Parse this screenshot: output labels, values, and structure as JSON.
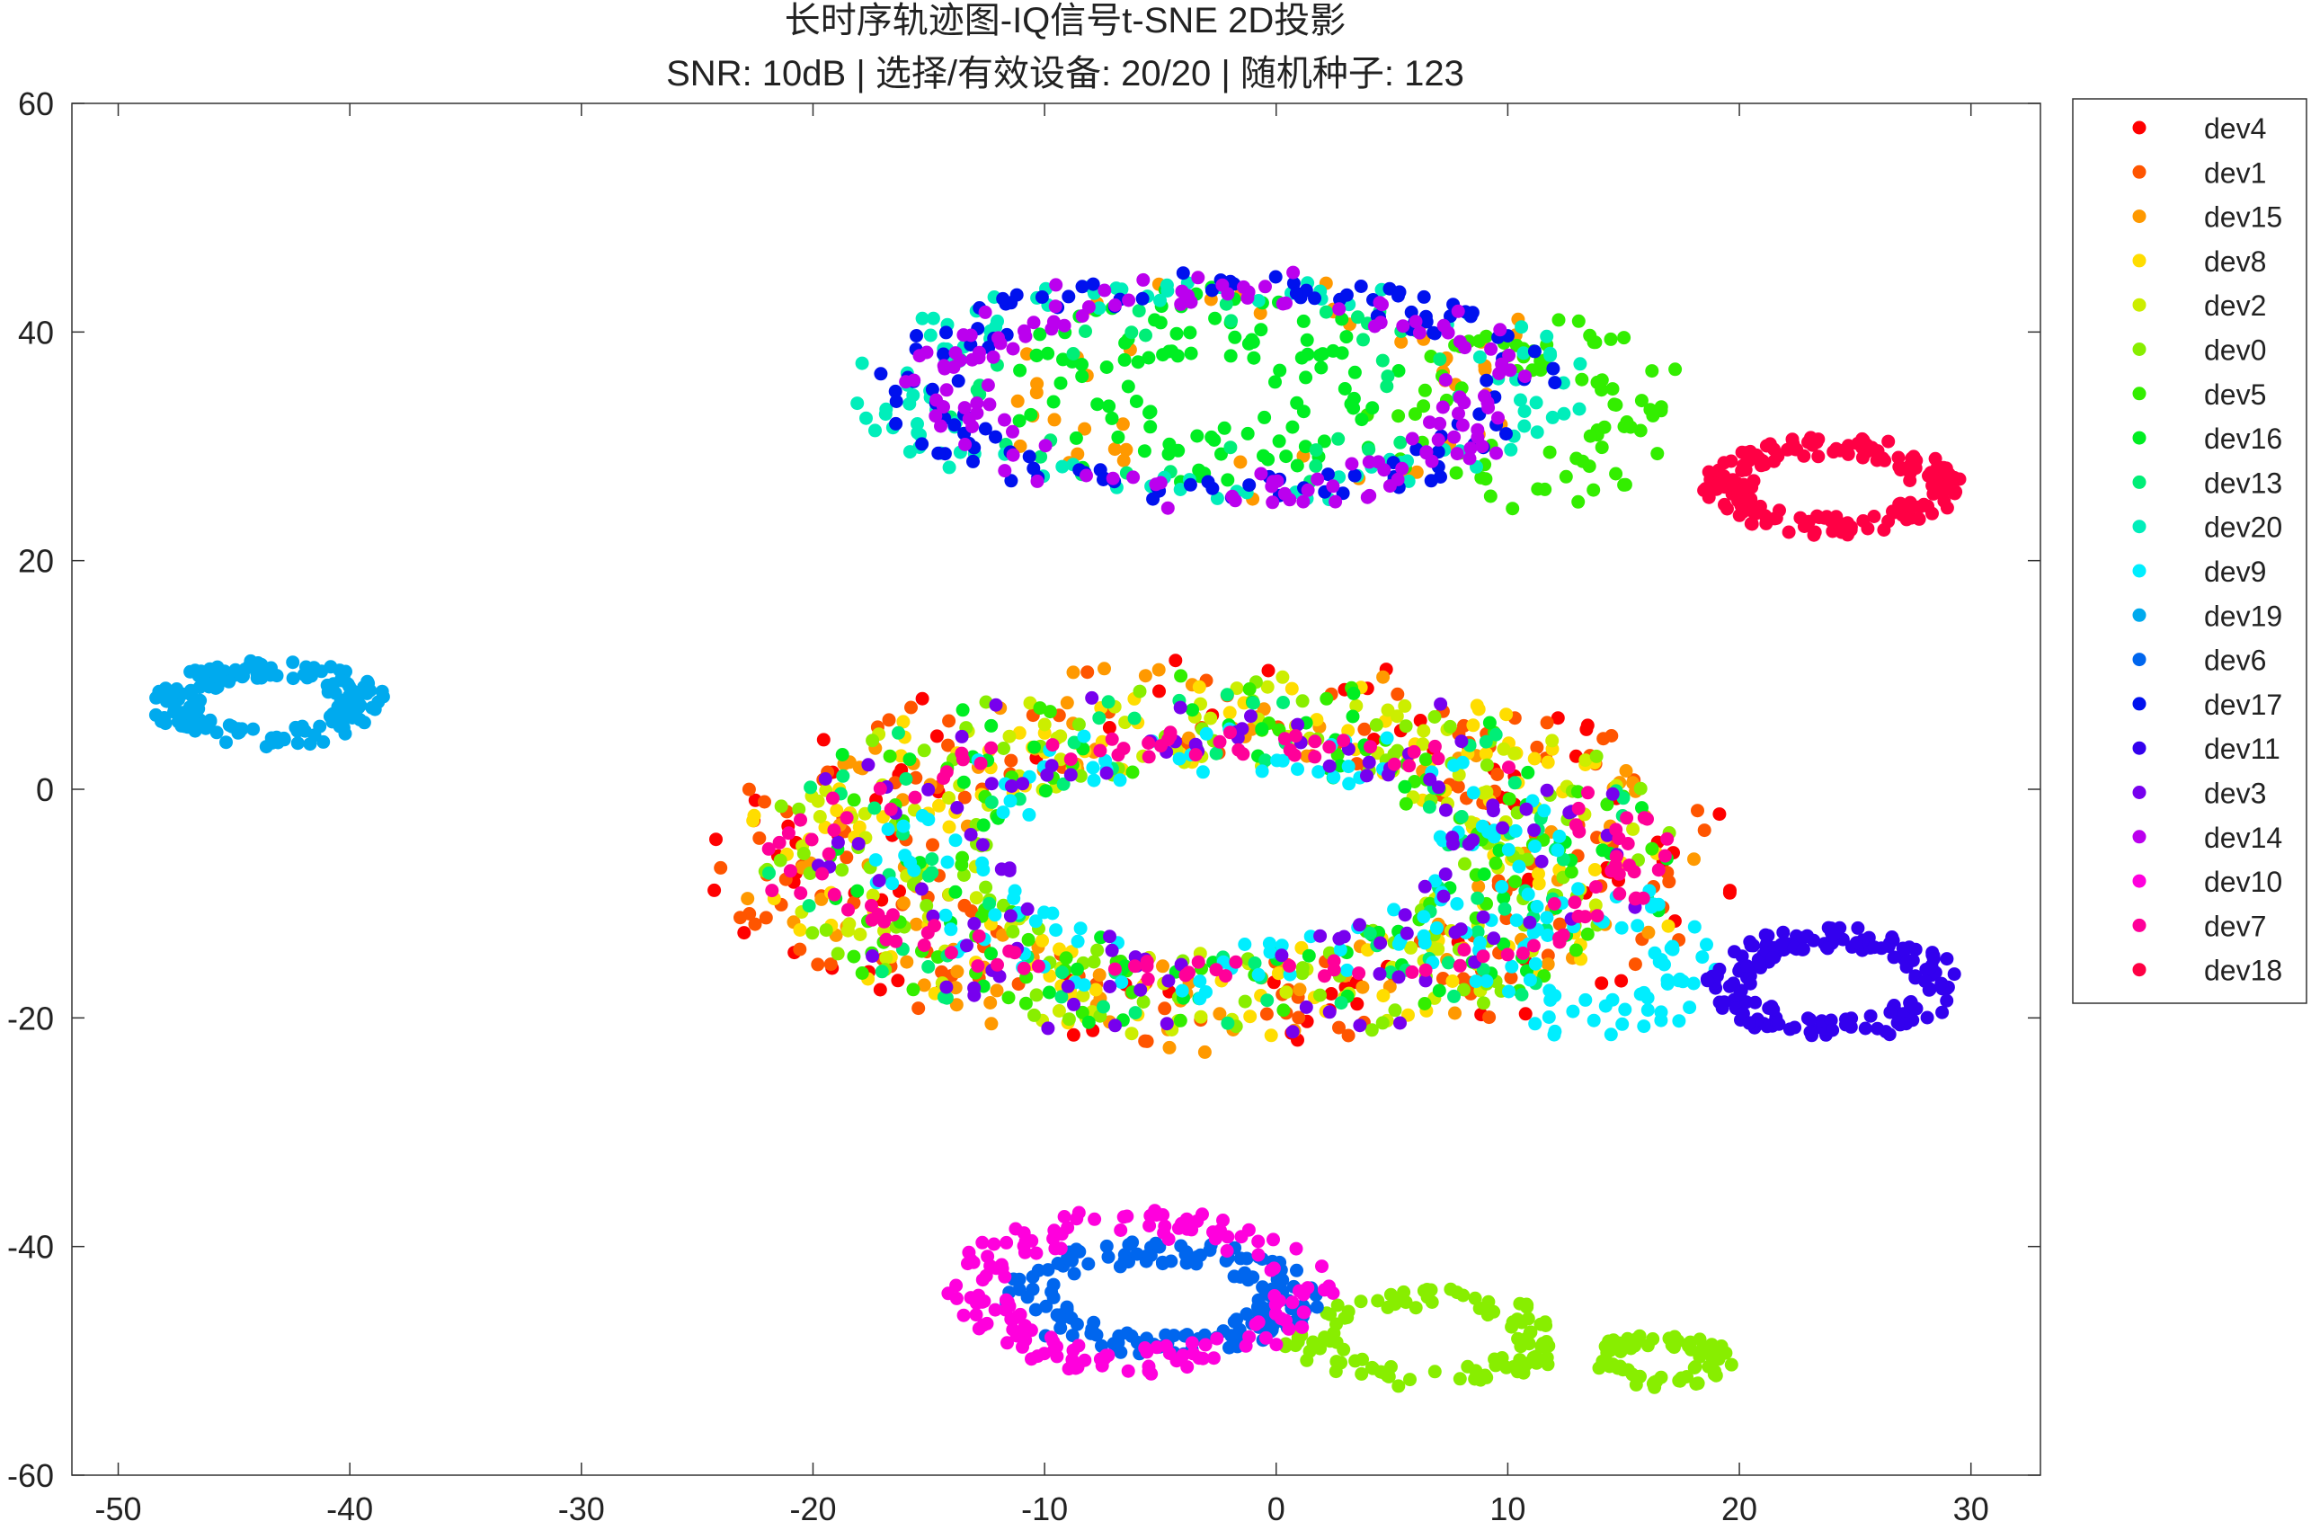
{
  "chart_data": {
    "type": "scatter",
    "title": "长时序轨迹图-IQ信号t-SNE 2D投影",
    "subtitle": "SNR: 10dB | 选择/有效设备: 20/20 | 随机种子: 123",
    "xlabel": "",
    "ylabel": "",
    "xlim": [
      -52,
      33
    ],
    "ylim": [
      -60,
      60
    ],
    "x_ticks": [
      -50,
      -40,
      -30,
      -20,
      -10,
      0,
      10,
      20,
      30
    ],
    "y_ticks": [
      -60,
      -40,
      -20,
      0,
      20,
      40,
      60
    ],
    "x_tick_labels": [
      "-50",
      "-40",
      "-30",
      "-20",
      "-10",
      "0",
      "10",
      "20",
      "30"
    ],
    "y_tick_labels": [
      "-60",
      "-40",
      "-20",
      "0",
      "20",
      "40",
      "60"
    ],
    "grid": false,
    "legend_position": "outside-top-right",
    "series": [
      {
        "name": "dev4",
        "color": "#ff0000",
        "clusters": [
          {
            "cx": -2.5,
            "cy": -6,
            "rx": 18,
            "ry": 14,
            "thickness": 4.5,
            "n": 90
          }
        ]
      },
      {
        "name": "dev1",
        "color": "#ff5500",
        "clusters": [
          {
            "cx": -2.5,
            "cy": -6,
            "rx": 17,
            "ry": 13,
            "thickness": 5,
            "n": 160
          }
        ]
      },
      {
        "name": "dev15",
        "color": "#ff9900",
        "clusters": [
          {
            "cx": -2.5,
            "cy": -6,
            "rx": 16,
            "ry": 13,
            "thickness": 5,
            "n": 110
          },
          {
            "cx": 0,
            "cy": 35,
            "rx": 10,
            "ry": 8,
            "thickness": 3,
            "n": 50
          }
        ]
      },
      {
        "name": "dev8",
        "color": "#ffdd00",
        "clusters": [
          {
            "cx": -2.5,
            "cy": -6,
            "rx": 16,
            "ry": 12,
            "thickness": 5,
            "n": 130
          }
        ]
      },
      {
        "name": "dev2",
        "color": "#ccee00",
        "clusters": [
          {
            "cx": -2.5,
            "cy": -6,
            "rx": 15,
            "ry": 12,
            "thickness": 5,
            "n": 130
          }
        ]
      },
      {
        "name": "dev0",
        "color": "#88ee00",
        "clusters": [
          {
            "cx": -2.5,
            "cy": -6,
            "rx": 15,
            "ry": 12,
            "thickness": 5,
            "n": 120
          },
          {
            "cx": 6.5,
            "cy": -48,
            "rx": 5,
            "ry": 3.5,
            "thickness": 1.2,
            "n": 110
          },
          {
            "cx": 16.5,
            "cy": -50,
            "rx": 2.5,
            "ry": 1.8,
            "thickness": 0.8,
            "n": 70
          }
        ]
      },
      {
        "name": "dev5",
        "color": "#33ee00",
        "clusters": [
          {
            "cx": -2.5,
            "cy": -6,
            "rx": 15,
            "ry": 12,
            "thickness": 5,
            "n": 90
          },
          {
            "cx": 11,
            "cy": 33,
            "rx": 5,
            "ry": 6,
            "thickness": 2.5,
            "n": 80
          }
        ]
      },
      {
        "name": "dev16",
        "color": "#00ee22",
        "clusters": [
          {
            "cx": -2.5,
            "cy": -6,
            "rx": 15,
            "ry": 12,
            "thickness": 5,
            "n": 80
          },
          {
            "cx": -3,
            "cy": 35,
            "rx": 6,
            "ry": 6,
            "thickness": 3,
            "n": 110
          }
        ]
      },
      {
        "name": "dev13",
        "color": "#00ee77",
        "clusters": [
          {
            "cx": -2.5,
            "cy": -6,
            "rx": 15,
            "ry": 12,
            "thickness": 5,
            "n": 90
          },
          {
            "cx": -3,
            "cy": 35,
            "rx": 9,
            "ry": 7,
            "thickness": 2.5,
            "n": 40
          }
        ]
      },
      {
        "name": "dev20",
        "color": "#00eebb",
        "clusters": [
          {
            "cx": -2.5,
            "cy": 35,
            "rx": 14,
            "ry": 9,
            "thickness": 2,
            "n": 110
          }
        ]
      },
      {
        "name": "dev9",
        "color": "#00eeff",
        "clusters": [
          {
            "cx": -2.5,
            "cy": -6,
            "rx": 12,
            "ry": 10,
            "thickness": 3,
            "n": 120
          },
          {
            "cx": 14,
            "cy": -15,
            "rx": 4,
            "ry": 5,
            "thickness": 2,
            "n": 70
          }
        ]
      },
      {
        "name": "dev19",
        "color": "#00aaee",
        "clusters": [
          {
            "cx": -43.5,
            "cy": 7.5,
            "rx": 4,
            "ry": 3,
            "thickness": 1.1,
            "n": 170
          }
        ]
      },
      {
        "name": "dev6",
        "color": "#0066ee",
        "clusters": [
          {
            "cx": -5,
            "cy": -44.5,
            "rx": 5.5,
            "ry": 4,
            "thickness": 1.4,
            "n": 160
          }
        ]
      },
      {
        "name": "dev17",
        "color": "#0011ee",
        "clusters": [
          {
            "cx": -2.5,
            "cy": 35,
            "rx": 13,
            "ry": 9,
            "thickness": 1.8,
            "n": 130
          }
        ]
      },
      {
        "name": "dev11",
        "color": "#3300ee",
        "clusters": [
          {
            "cx": 24,
            "cy": -17,
            "rx": 4.5,
            "ry": 4,
            "thickness": 1.1,
            "n": 170
          }
        ]
      },
      {
        "name": "dev3",
        "color": "#7700ee",
        "clusters": [
          {
            "cx": -2.5,
            "cy": -6,
            "rx": 14,
            "ry": 12,
            "thickness": 5,
            "n": 120
          }
        ]
      },
      {
        "name": "dev14",
        "color": "#bb00ee",
        "clusters": [
          {
            "cx": -2.5,
            "cy": 35,
            "rx": 12,
            "ry": 9,
            "thickness": 2.2,
            "n": 140
          }
        ]
      },
      {
        "name": "dev10",
        "color": "#ff00dd",
        "clusters": [
          {
            "cx": -6,
            "cy": -44,
            "rx": 7,
            "ry": 6,
            "thickness": 1.5,
            "n": 160
          }
        ]
      },
      {
        "name": "dev7",
        "color": "#ff0099",
        "clusters": [
          {
            "cx": -2.5,
            "cy": -6,
            "rx": 18,
            "ry": 10,
            "thickness": 2,
            "n": 130
          }
        ]
      },
      {
        "name": "dev18",
        "color": "#ff0044",
        "clusters": [
          {
            "cx": 24,
            "cy": 26.5,
            "rx": 4.5,
            "ry": 3.5,
            "thickness": 1.1,
            "n": 180
          }
        ]
      }
    ]
  }
}
